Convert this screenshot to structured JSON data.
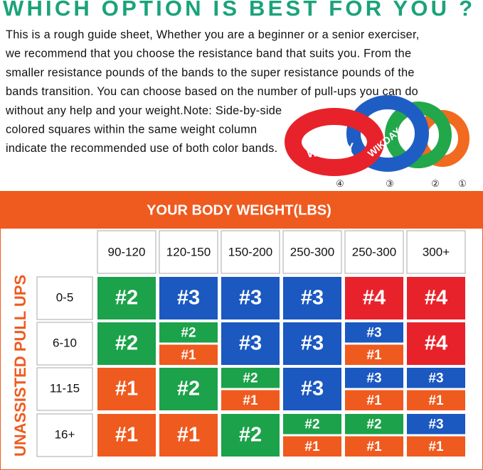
{
  "title": "WHICH OPTION IS BEST FOR YOU ?",
  "intro": {
    "lines": [
      "This is a rough guide sheet, Whether you are a beginner or a senior exerciser,",
      "we recommend that you choose the resistance band that suits you. From the",
      "smaller resistance pounds of the bands to the super resistance pounds of the",
      "bands transition. You can choose based on the number of pull-ups you can do",
      "without any help and your weight.Note: Side-by-side",
      "colored squares within the same weight column",
      "indicate the recommended use of both color bands."
    ]
  },
  "image": {
    "brand": "WIKDAY",
    "labels": [
      "④",
      "③",
      "②",
      "①"
    ]
  },
  "table": {
    "header": "YOUR BODY WEIGHT(LBS)",
    "side_label": "UNASSISTED PULL UPS",
    "columns": [
      "90-120",
      "120-150",
      "150-200",
      "250-300",
      "250-300",
      "300+"
    ],
    "rows": [
      {
        "label": "0-5",
        "cells": [
          [
            {
              "label": "#2",
              "color": "#1ca24a"
            }
          ],
          [
            {
              "label": "#3",
              "color": "#1b58c0"
            }
          ],
          [
            {
              "label": "#3",
              "color": "#1b58c0"
            }
          ],
          [
            {
              "label": "#3",
              "color": "#1b58c0"
            }
          ],
          [
            {
              "label": "#4",
              "color": "#e8222b"
            }
          ],
          [
            {
              "label": "#4",
              "color": "#e8222b"
            }
          ]
        ]
      },
      {
        "label": "6-10",
        "cells": [
          [
            {
              "label": "#2",
              "color": "#1ca24a"
            }
          ],
          [
            {
              "label": "#2",
              "color": "#1ca24a"
            },
            {
              "label": "#1",
              "color": "#ef5a1f"
            }
          ],
          [
            {
              "label": "#3",
              "color": "#1b58c0"
            }
          ],
          [
            {
              "label": "#3",
              "color": "#1b58c0"
            }
          ],
          [
            {
              "label": "#3",
              "color": "#1b58c0"
            },
            {
              "label": "#1",
              "color": "#ef5a1f"
            }
          ],
          [
            {
              "label": "#4",
              "color": "#e8222b"
            }
          ]
        ]
      },
      {
        "label": "11-15",
        "cells": [
          [
            {
              "label": "#1",
              "color": "#ef5a1f"
            }
          ],
          [
            {
              "label": "#2",
              "color": "#1ca24a"
            }
          ],
          [
            {
              "label": "#2",
              "color": "#1ca24a"
            },
            {
              "label": "#1",
              "color": "#ef5a1f"
            }
          ],
          [
            {
              "label": "#3",
              "color": "#1b58c0"
            }
          ],
          [
            {
              "label": "#3",
              "color": "#1b58c0"
            },
            {
              "label": "#1",
              "color": "#ef5a1f"
            }
          ],
          [
            {
              "label": "#3",
              "color": "#1b58c0"
            },
            {
              "label": "#1",
              "color": "#ef5a1f"
            }
          ]
        ]
      },
      {
        "label": "16+",
        "cells": [
          [
            {
              "label": "#1",
              "color": "#ef5a1f"
            }
          ],
          [
            {
              "label": "#1",
              "color": "#ef5a1f"
            }
          ],
          [
            {
              "label": "#2",
              "color": "#1ca24a"
            }
          ],
          [
            {
              "label": "#2",
              "color": "#1ca24a"
            },
            {
              "label": "#1",
              "color": "#ef5a1f"
            }
          ],
          [
            {
              "label": "#2",
              "color": "#1ca24a"
            },
            {
              "label": "#1",
              "color": "#ef5a1f"
            }
          ],
          [
            {
              "label": "#3",
              "color": "#1b58c0"
            },
            {
              "label": "#1",
              "color": "#ef5a1f"
            }
          ]
        ]
      }
    ]
  }
}
